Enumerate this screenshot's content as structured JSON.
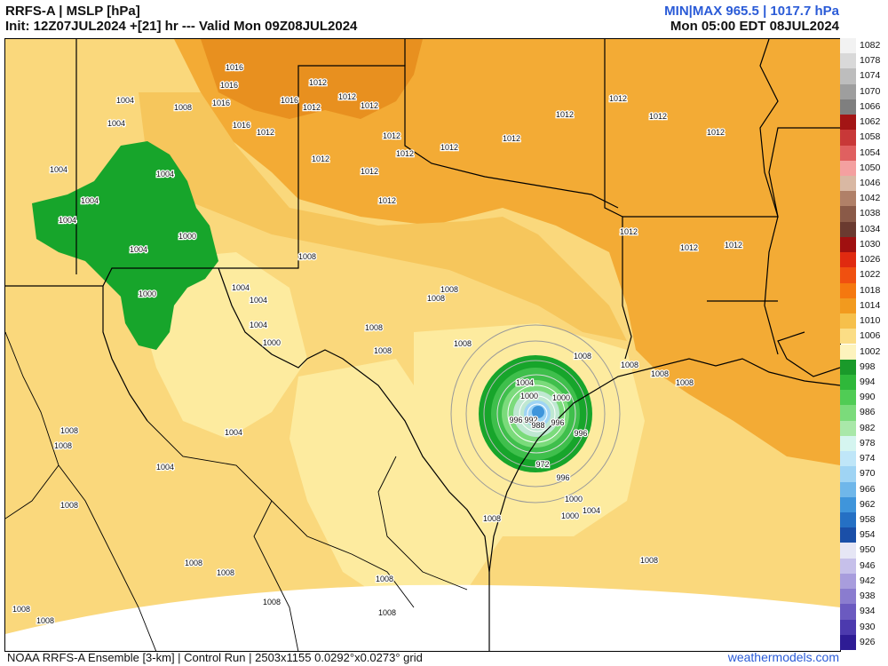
{
  "header": {
    "title_left": "RRFS-A | MSLP [hPa]",
    "init_line": "Init: 12Z07JUL2024 +[21] hr --- Valid Mon 09Z08JUL2024",
    "minmax": "MIN|MAX 965.5 | 1017.7 hPa",
    "local_time": "Mon 05:00 EDT 08JUL2024"
  },
  "footer": {
    "model_info": "NOAA RRFS-A Ensemble [3-km] | Control Run | 2503x1155 0.0292°x0.0273° grid",
    "site": "weathermodels.com"
  },
  "colors": {
    "high_1016": "#e8901f",
    "high_1012": "#f3ab35",
    "mid_1010": "#f6c65c",
    "low_1008": "#fad87c",
    "low_1006": "#fdeb9f",
    "storm_outer": "#17a52b",
    "storm_mid": "#3fbf4c",
    "storm_inner": "#9fe09f",
    "storm_core": "#6cb6e8",
    "border": "#000000"
  },
  "colorbar": [
    {
      "value": "1082",
      "color": "#f2f2f2"
    },
    {
      "value": "1078",
      "color": "#d9d9d9"
    },
    {
      "value": "1074",
      "color": "#bdbdbd"
    },
    {
      "value": "1070",
      "color": "#9e9e9e"
    },
    {
      "value": "1066",
      "color": "#7f7f7f"
    },
    {
      "value": "1062",
      "color": "#a31515"
    },
    {
      "value": "1058",
      "color": "#c83838"
    },
    {
      "value": "1054",
      "color": "#e06060"
    },
    {
      "value": "1050",
      "color": "#f4a0a0"
    },
    {
      "value": "1046",
      "color": "#d9b8a3"
    },
    {
      "value": "1042",
      "color": "#b08068"
    },
    {
      "value": "1038",
      "color": "#8a5a48"
    },
    {
      "value": "1034",
      "color": "#6a3a30"
    },
    {
      "value": "1030",
      "color": "#a01010"
    },
    {
      "value": "1026",
      "color": "#e02a10"
    },
    {
      "value": "1022",
      "color": "#f05010"
    },
    {
      "value": "1018",
      "color": "#f5780f"
    },
    {
      "value": "1014",
      "color": "#f29a1e"
    },
    {
      "value": "1010",
      "color": "#f6c04b"
    },
    {
      "value": "1006",
      "color": "#fbdd85"
    },
    {
      "value": "1002",
      "color": "#fdf3bd"
    },
    {
      "value": "998",
      "color": "#1a9a2a"
    },
    {
      "value": "994",
      "color": "#2fb83a"
    },
    {
      "value": "990",
      "color": "#50cc55"
    },
    {
      "value": "986",
      "color": "#7bdb7b"
    },
    {
      "value": "982",
      "color": "#a9e8a9"
    },
    {
      "value": "978",
      "color": "#d5f5f0"
    },
    {
      "value": "974",
      "color": "#bfe6f8"
    },
    {
      "value": "970",
      "color": "#9fd4f4"
    },
    {
      "value": "966",
      "color": "#6fb7ea"
    },
    {
      "value": "962",
      "color": "#3f95db"
    },
    {
      "value": "958",
      "color": "#2570c4"
    },
    {
      "value": "954",
      "color": "#1a4fa8"
    },
    {
      "value": "950",
      "color": "#e6e6f5"
    },
    {
      "value": "946",
      "color": "#c6c0ea"
    },
    {
      "value": "942",
      "color": "#a89ddd"
    },
    {
      "value": "938",
      "color": "#8a7ccf"
    },
    {
      "value": "934",
      "color": "#6b5ac0"
    },
    {
      "value": "930",
      "color": "#4c3aae"
    },
    {
      "value": "926",
      "color": "#2e1c95"
    }
  ],
  "isobar_labels": [
    "1016",
    "1016",
    "1016",
    "1016",
    "1012",
    "1012",
    "1016",
    "1012",
    "1012",
    "1012",
    "1012",
    "1012",
    "1012",
    "1012",
    "1012",
    "1012",
    "1012",
    "1012",
    "1012",
    "1012",
    "1012",
    "1004",
    "1004",
    "1004",
    "1008",
    "1004",
    "1004",
    "1000",
    "1000",
    "1004",
    "1004",
    "1000",
    "1004",
    "1004",
    "1008",
    "1008",
    "1008",
    "1008",
    "1008",
    "1008",
    "1008",
    "1008",
    "1008",
    "1008",
    "1004",
    "1000",
    "1000",
    "996",
    "992",
    "988",
    "996",
    "996",
    "972",
    "996",
    "1000",
    "1000",
    "1004",
    "1008",
    "1008",
    "1008",
    "1008",
    "1008",
    "1008",
    "1008",
    "1008",
    "1008",
    "1008",
    "1012",
    "1012",
    "1012",
    "1004",
    "1004",
    "1008",
    "1008",
    "1004"
  ]
}
